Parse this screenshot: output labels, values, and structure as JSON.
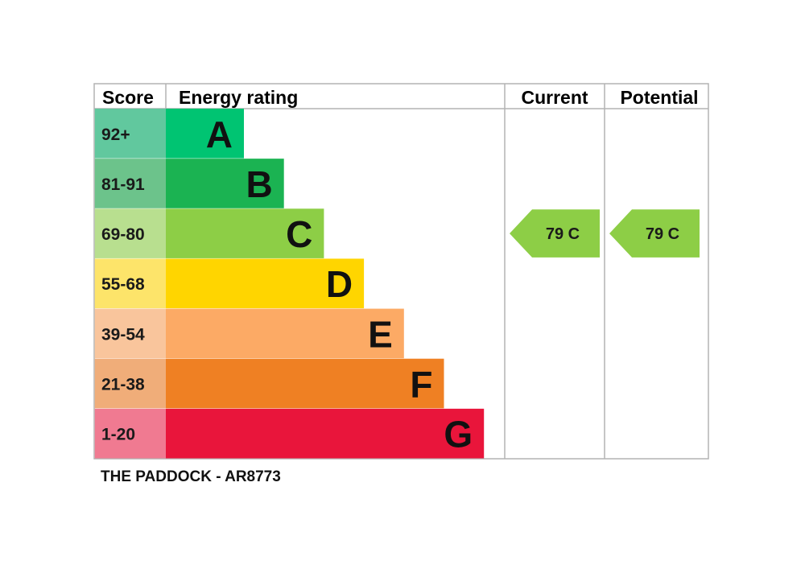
{
  "chart_data": {
    "type": "bar",
    "headers": {
      "score": "Score",
      "rating": "Energy rating",
      "current": "Current",
      "potential": "Potential"
    },
    "bands": [
      {
        "letter": "A",
        "range": "92+",
        "min": 92,
        "max": 100,
        "color": "#00c472",
        "score_color": "#61c89e"
      },
      {
        "letter": "B",
        "range": "81-91",
        "min": 81,
        "max": 91,
        "color": "#1bb352",
        "score_color": "#6cc38b"
      },
      {
        "letter": "C",
        "range": "69-80",
        "min": 69,
        "max": 80,
        "color": "#8dce46",
        "score_color": "#b8df8f"
      },
      {
        "letter": "D",
        "range": "55-68",
        "min": 55,
        "max": 68,
        "color": "#ffd500",
        "score_color": "#fde46a"
      },
      {
        "letter": "E",
        "range": "39-54",
        "min": 39,
        "max": 54,
        "color": "#fcaa65",
        "score_color": "#f9c59c"
      },
      {
        "letter": "F",
        "range": "21-38",
        "min": 21,
        "max": 38,
        "color": "#ef8023",
        "score_color": "#f0ad79"
      },
      {
        "letter": "G",
        "range": "1-20",
        "min": 1,
        "max": 20,
        "color": "#e9153b",
        "score_color": "#f07a91"
      }
    ],
    "current": {
      "score": 79,
      "band": "C",
      "label": "79  C",
      "color": "#8dce46"
    },
    "potential": {
      "score": 79,
      "band": "C",
      "label": "79  C",
      "color": "#8dce46"
    },
    "caption": "THE PADDOCK - AR8773"
  }
}
